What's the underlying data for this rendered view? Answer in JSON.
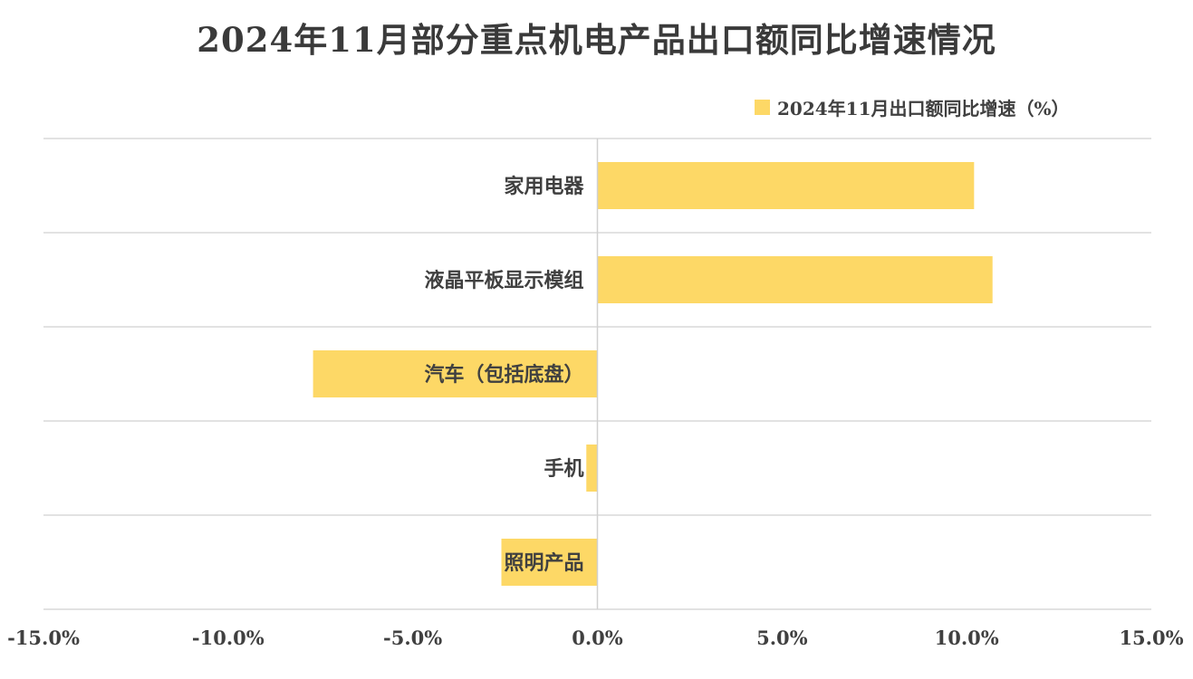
{
  "chart_data": {
    "type": "bar",
    "orientation": "horizontal",
    "title": "2024年11月部分重点机电产品出口额同比增速情况",
    "categories": [
      "家用电器",
      "液晶平板显示模组",
      "汽车（包括底盘）",
      "手机",
      "照明产品"
    ],
    "series": [
      {
        "name": "2024年11月出口额同比增速（%）",
        "values": [
          10.2,
          10.7,
          -7.7,
          -0.3,
          -2.6
        ],
        "color": "#FDD866"
      }
    ],
    "xlim": [
      -15,
      15
    ],
    "xticks": [
      -15,
      -10,
      -5,
      0,
      5,
      10,
      15
    ],
    "xtick_labels": [
      "-15.0%",
      "-10.0%",
      "-5.0%",
      "0.0%",
      "5.0%",
      "10.0%",
      "15.0%"
    ],
    "xlabel": "",
    "ylabel": "",
    "grid": "horizontal",
    "legend_position": "top-right"
  }
}
